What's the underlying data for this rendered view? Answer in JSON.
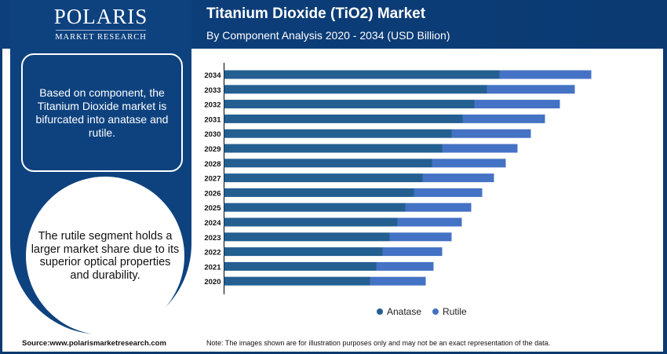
{
  "logo": {
    "name": "POLARIS",
    "sub": "MARKET RESEARCH"
  },
  "header": {
    "title": "Titanium Dioxide (TiO2) Market",
    "subtitle": "By Component Analysis 2020 - 2034 (USD Billion)"
  },
  "sidebar": {
    "box_text": "Based on component, the Titanium Dioxide market is bifurcated into anatase and rutile.",
    "circle_text": "The rutile segment holds a larger market share due to its superior optical properties and durability."
  },
  "footer": {
    "source": "Source:www.polarismarketresearch.com",
    "note": "Note: The images shown are for illustration purposes only and may not be an exact representation of the data."
  },
  "chart_data": {
    "type": "bar",
    "orientation": "horizontal",
    "stacked": true,
    "grid": false,
    "legend_position": "bottom",
    "title": "Titanium Dioxide (TiO2) Market",
    "subtitle": "By Component Analysis 2020 - 2034 (USD Billion)",
    "categories": [
      "2020",
      "2021",
      "2022",
      "2023",
      "2024",
      "2025",
      "2026",
      "2027",
      "2028",
      "2029",
      "2030",
      "2031",
      "2032",
      "2033",
      "2034"
    ],
    "series": [
      {
        "name": "Anatase",
        "color": "#245f91",
        "values": [
          18.6,
          19.4,
          20.2,
          21.1,
          22.1,
          23.1,
          24.2,
          25.3,
          26.5,
          27.8,
          29.0,
          30.4,
          31.9,
          33.5,
          35.1
        ]
      },
      {
        "name": "Rutile",
        "color": "#4472c4",
        "values": [
          7.1,
          7.3,
          7.6,
          7.9,
          8.2,
          8.4,
          8.7,
          9.1,
          9.4,
          9.6,
          10.1,
          10.5,
          10.9,
          11.2,
          11.7
        ]
      }
    ],
    "xlim": [
      0,
      48
    ]
  }
}
